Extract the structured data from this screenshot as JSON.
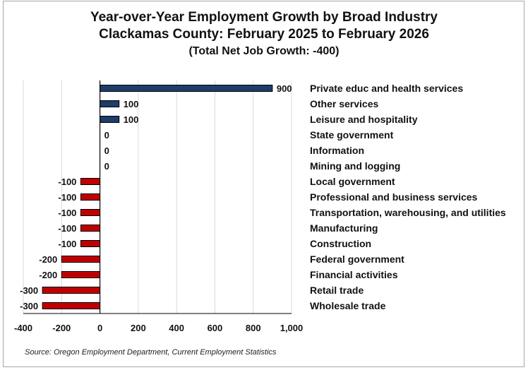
{
  "chart_data": {
    "type": "bar",
    "orientation": "horizontal",
    "title": "Year-over-Year Employment Growth by Broad Industry",
    "subtitle": "Clackamas County:  February 2025 to February 2026",
    "subtitle2": "(Total Net Job Growth: -400)",
    "source": "Source: Oregon Employment Department, Current Employment Statistics",
    "categories": [
      "Private educ and health services",
      "Other services",
      "Leisure and hospitality",
      "State government",
      "Information",
      "Mining and logging",
      "Local government",
      "Professional and business services",
      "Transportation, warehousing, and utilities",
      "Manufacturing",
      "Construction",
      "Federal government",
      "Financial activities",
      "Retail trade",
      "Wholesale trade"
    ],
    "values": [
      900,
      100,
      100,
      0,
      0,
      0,
      -100,
      -100,
      -100,
      -100,
      -100,
      -200,
      -200,
      -300,
      -300
    ],
    "data_labels": [
      "900",
      "100",
      "100",
      "0",
      "0",
      "0",
      "-100",
      "-100",
      "-100",
      "-100",
      "-100",
      "-200",
      "-200",
      "-300",
      "-300"
    ],
    "xlim": [
      -400,
      1000
    ],
    "x_ticks": [
      -400,
      -200,
      0,
      200,
      400,
      600,
      800,
      1000
    ],
    "x_tick_labels": [
      "-400",
      "-200",
      "0",
      "200",
      "400",
      "600",
      "800",
      "1,000"
    ],
    "colors": {
      "positive": "#1f3d6b",
      "negative": "#c00000"
    },
    "grid": "vertical",
    "legend": "none"
  }
}
